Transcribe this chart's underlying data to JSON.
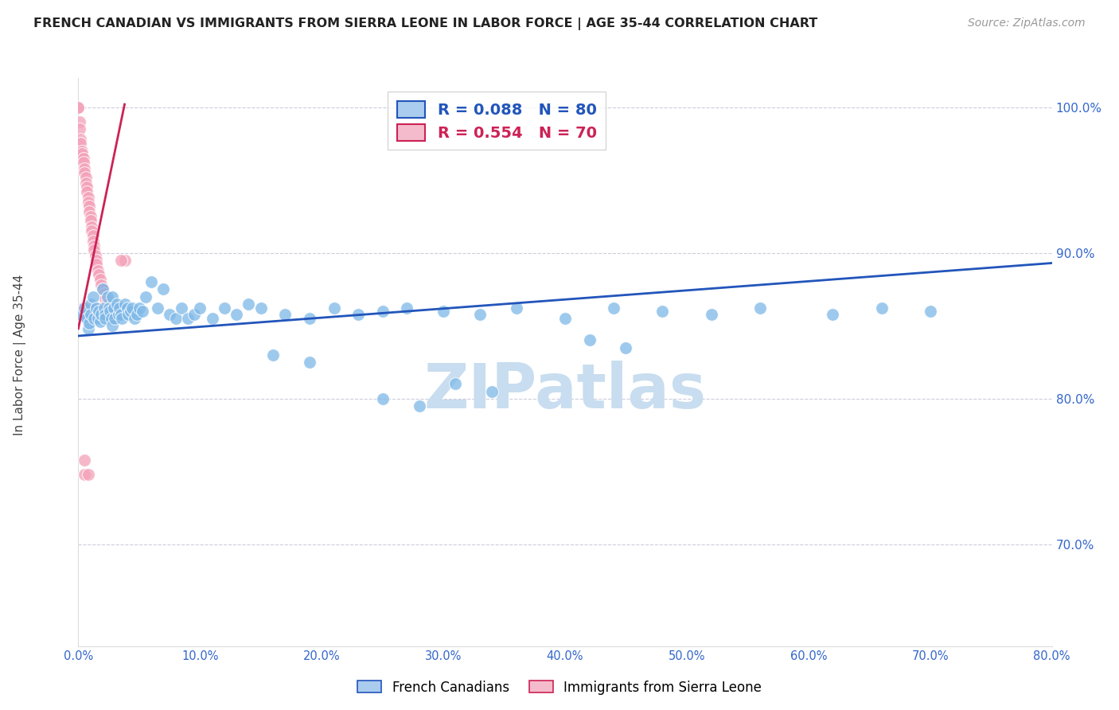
{
  "title": "FRENCH CANADIAN VS IMMIGRANTS FROM SIERRA LEONE IN LABOR FORCE | AGE 35-44 CORRELATION CHART",
  "source": "Source: ZipAtlas.com",
  "ylabel": "In Labor Force | Age 35-44",
  "ytick_labels": [
    "100.0%",
    "90.0%",
    "80.0%",
    "70.0%"
  ],
  "ytick_values": [
    1.0,
    0.9,
    0.8,
    0.7
  ],
  "blue_R": 0.088,
  "blue_N": 80,
  "pink_R": 0.554,
  "pink_N": 70,
  "blue_color": "#7DB8E8",
  "pink_color": "#F4A0B8",
  "blue_line_color": "#2255BB",
  "pink_line_color": "#CC2255",
  "legend_blue_fill": "#AACCEE",
  "legend_pink_fill": "#F4BBCC",
  "blue_scatter_x": [
    0.003,
    0.005,
    0.007,
    0.008,
    0.009,
    0.01,
    0.01,
    0.012,
    0.013,
    0.015,
    0.016,
    0.017,
    0.018,
    0.019,
    0.02,
    0.021,
    0.022,
    0.022,
    0.024,
    0.025,
    0.026,
    0.027,
    0.028,
    0.028,
    0.029,
    0.03,
    0.032,
    0.033,
    0.034,
    0.035,
    0.036,
    0.038,
    0.04,
    0.041,
    0.043,
    0.044,
    0.046,
    0.048,
    0.05,
    0.053,
    0.055,
    0.06,
    0.065,
    0.07,
    0.075,
    0.08,
    0.085,
    0.09,
    0.095,
    0.1,
    0.11,
    0.12,
    0.13,
    0.14,
    0.15,
    0.17,
    0.19,
    0.21,
    0.23,
    0.25,
    0.27,
    0.3,
    0.33,
    0.36,
    0.4,
    0.44,
    0.48,
    0.52,
    0.56,
    0.62,
    0.66,
    0.7,
    0.25,
    0.28,
    0.31,
    0.34,
    0.16,
    0.19,
    0.42,
    0.45
  ],
  "blue_scatter_y": [
    0.857,
    0.862,
    0.855,
    0.848,
    0.852,
    0.865,
    0.858,
    0.87,
    0.855,
    0.862,
    0.855,
    0.86,
    0.853,
    0.858,
    0.875,
    0.862,
    0.858,
    0.855,
    0.87,
    0.862,
    0.86,
    0.855,
    0.85,
    0.87,
    0.862,
    0.855,
    0.865,
    0.858,
    0.862,
    0.858,
    0.855,
    0.865,
    0.862,
    0.858,
    0.86,
    0.862,
    0.855,
    0.858,
    0.862,
    0.86,
    0.87,
    0.88,
    0.862,
    0.875,
    0.858,
    0.855,
    0.862,
    0.855,
    0.858,
    0.862,
    0.855,
    0.862,
    0.858,
    0.865,
    0.862,
    0.858,
    0.855,
    0.862,
    0.858,
    0.86,
    0.862,
    0.86,
    0.858,
    0.862,
    0.855,
    0.862,
    0.86,
    0.858,
    0.862,
    0.858,
    0.862,
    0.86,
    0.8,
    0.795,
    0.81,
    0.805,
    0.83,
    0.825,
    0.84,
    0.835
  ],
  "pink_scatter_x": [
    0.0,
    0.0,
    0.001,
    0.001,
    0.002,
    0.002,
    0.003,
    0.003,
    0.004,
    0.004,
    0.005,
    0.005,
    0.006,
    0.006,
    0.007,
    0.007,
    0.008,
    0.008,
    0.009,
    0.009,
    0.01,
    0.01,
    0.011,
    0.011,
    0.012,
    0.012,
    0.013,
    0.013,
    0.014,
    0.015,
    0.015,
    0.016,
    0.017,
    0.018,
    0.019,
    0.02,
    0.021,
    0.022,
    0.023,
    0.024,
    0.025,
    0.026,
    0.027,
    0.028,
    0.029,
    0.03,
    0.032,
    0.034,
    0.036,
    0.038,
    0.005,
    0.008,
    0.01,
    0.012,
    0.015,
    0.018,
    0.003,
    0.006,
    0.009,
    0.012,
    0.015,
    0.018,
    0.004,
    0.007,
    0.01,
    0.013,
    0.005,
    0.008,
    0.035,
    0.005
  ],
  "pink_scatter_y": [
    1.0,
    1.0,
    0.99,
    0.985,
    0.978,
    0.975,
    0.97,
    0.968,
    0.965,
    0.962,
    0.958,
    0.955,
    0.952,
    0.948,
    0.945,
    0.942,
    0.938,
    0.935,
    0.932,
    0.928,
    0.925,
    0.922,
    0.918,
    0.915,
    0.912,
    0.908,
    0.905,
    0.902,
    0.898,
    0.895,
    0.892,
    0.888,
    0.885,
    0.882,
    0.878,
    0.875,
    0.872,
    0.868,
    0.865,
    0.862,
    0.858,
    0.855,
    0.858,
    0.862,
    0.858,
    0.858,
    0.862,
    0.858,
    0.862,
    0.895,
    0.858,
    0.862,
    0.855,
    0.858,
    0.862,
    0.858,
    0.862,
    0.858,
    0.855,
    0.858,
    0.858,
    0.858,
    0.862,
    0.858,
    0.855,
    0.858,
    0.748,
    0.748,
    0.895,
    0.758
  ],
  "blue_line_x": [
    0.0,
    0.8
  ],
  "blue_line_y": [
    0.843,
    0.893
  ],
  "pink_line_x": [
    0.0,
    0.038
  ],
  "pink_line_y": [
    0.848,
    1.002
  ],
  "xlim": [
    0.0,
    0.8
  ],
  "ylim": [
    0.63,
    1.02
  ],
  "xtick_values": [
    0.0,
    0.1,
    0.2,
    0.3,
    0.4,
    0.5,
    0.6,
    0.7,
    0.8
  ],
  "xtick_labels": [
    "0.0%",
    "10.0%",
    "20.0%",
    "30.0%",
    "40.0%",
    "50.0%",
    "60.0%",
    "70.0%",
    "80.0%"
  ],
  "watermark_text": "ZIPatlas",
  "watermark_color": "#C8DDEF",
  "background_color": "#FFFFFF",
  "grid_color": "#CCCCDD",
  "axis_label_color": "#3366CC",
  "title_color": "#222222",
  "source_color": "#999999",
  "ylabel_color": "#444444"
}
